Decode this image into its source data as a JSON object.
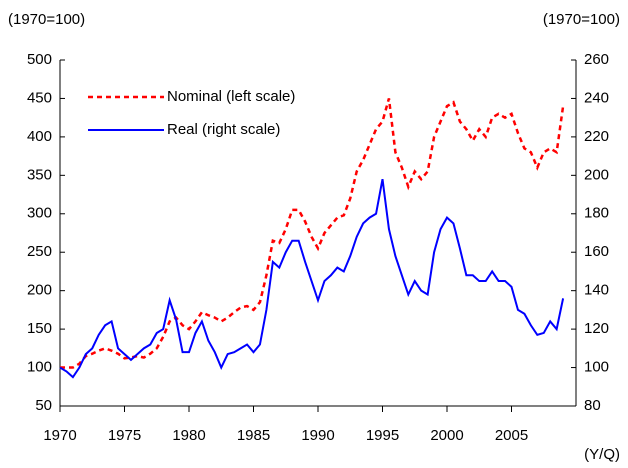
{
  "chart_data": {
    "type": "line",
    "y_unit_label": "(1970=100)",
    "y2_unit_label": "(1970=100)",
    "x_unit_label": "(Y/Q)",
    "x": [
      1970,
      1970.5,
      1971,
      1971.5,
      1972,
      1972.5,
      1973,
      1973.5,
      1974,
      1974.5,
      1975,
      1975.5,
      1976,
      1976.5,
      1977,
      1977.5,
      1978,
      1978.5,
      1979,
      1979.5,
      1980,
      1980.5,
      1981,
      1981.5,
      1982,
      1982.5,
      1983,
      1983.5,
      1984,
      1984.5,
      1985,
      1985.5,
      1986,
      1986.5,
      1987,
      1987.5,
      1988,
      1988.5,
      1989,
      1989.5,
      1990,
      1990.5,
      1991,
      1991.5,
      1992,
      1992.5,
      1993,
      1993.5,
      1994,
      1994.5,
      1995,
      1995.5,
      1996,
      1996.5,
      1997,
      1997.5,
      1998,
      1998.5,
      1999,
      1999.5,
      2000,
      2000.5,
      2001,
      2001.5,
      2002,
      2002.5,
      2003,
      2003.5,
      2004,
      2004.5,
      2005,
      2005.5,
      2006,
      2006.5,
      2007,
      2007.5,
      2008,
      2008.5,
      2009
    ],
    "series": [
      {
        "name": "Nominal (left scale)",
        "color": "#ff0000",
        "dash": true,
        "axis": "y",
        "values": [
          100,
          100,
          100,
          105,
          115,
          118,
          122,
          125,
          122,
          118,
          112,
          113,
          115,
          113,
          118,
          125,
          140,
          160,
          165,
          155,
          150,
          160,
          172,
          168,
          165,
          160,
          165,
          172,
          178,
          180,
          175,
          185,
          220,
          265,
          262,
          280,
          305,
          305,
          290,
          270,
          255,
          275,
          285,
          295,
          298,
          320,
          355,
          370,
          390,
          410,
          420,
          450,
          380,
          360,
          335,
          355,
          345,
          355,
          400,
          420,
          440,
          445,
          420,
          410,
          395,
          410,
          400,
          425,
          430,
          425,
          430,
          405,
          385,
          380,
          360,
          380,
          385,
          380,
          440
        ]
      },
      {
        "name": "Real (right scale)",
        "color": "#0000ff",
        "dash": false,
        "axis": "y2",
        "values": [
          100,
          98,
          95,
          100,
          107,
          110,
          117,
          122,
          124,
          110,
          107,
          104,
          107,
          110,
          112,
          118,
          120,
          135,
          125,
          108,
          108,
          118,
          124,
          114,
          108,
          100,
          107,
          108,
          110,
          112,
          108,
          112,
          130,
          155,
          152,
          160,
          166,
          166,
          155,
          145,
          135,
          145,
          148,
          152,
          150,
          158,
          168,
          175,
          178,
          180,
          198,
          172,
          158,
          148,
          138,
          145,
          140,
          138,
          160,
          172,
          178,
          175,
          162,
          148,
          148,
          145,
          145,
          150,
          145,
          145,
          142,
          130,
          128,
          122,
          117,
          118,
          124,
          120,
          136
        ]
      }
    ],
    "xlim": [
      1970,
      2010
    ],
    "xticks": [
      1970,
      1975,
      1980,
      1985,
      1990,
      1995,
      2000,
      2005
    ],
    "ylim": [
      50,
      500
    ],
    "yticks": [
      50,
      100,
      150,
      200,
      250,
      300,
      350,
      400,
      450,
      500
    ],
    "y2lim": [
      80,
      260
    ],
    "y2ticks": [
      80,
      100,
      120,
      140,
      160,
      180,
      200,
      220,
      240,
      260
    ],
    "grid": false,
    "legend": "upper left"
  }
}
